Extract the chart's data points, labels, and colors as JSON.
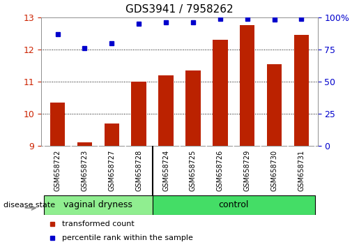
{
  "title": "GDS3941 / 7958262",
  "samples": [
    "GSM658722",
    "GSM658723",
    "GSM658727",
    "GSM658728",
    "GSM658724",
    "GSM658725",
    "GSM658726",
    "GSM658729",
    "GSM658730",
    "GSM658731"
  ],
  "red_values": [
    10.35,
    9.1,
    9.7,
    11.0,
    11.2,
    11.35,
    12.3,
    12.75,
    11.55,
    12.45
  ],
  "blue_values": [
    87,
    76,
    80,
    95,
    96,
    96,
    99,
    99,
    98,
    99
  ],
  "ylim_left": [
    9,
    13
  ],
  "ylim_right": [
    0,
    100
  ],
  "yticks_left": [
    9,
    10,
    11,
    12,
    13
  ],
  "yticks_right": [
    0,
    25,
    50,
    75,
    100
  ],
  "ytick_labels_right": [
    "0",
    "25",
    "50",
    "75",
    "100%"
  ],
  "n_vd": 4,
  "n_ctrl": 6,
  "group_vd_label": "vaginal dryness",
  "group_ctrl_label": "control",
  "group_label": "disease state",
  "group_vd_color": "#90EE90",
  "group_ctrl_color": "#44DD66",
  "bar_color": "#BB2200",
  "dot_color": "#0000CC",
  "bar_width": 0.55,
  "background_color": "#FFFFFF",
  "xtick_bg": "#CCCCCC",
  "left_tick_color": "#CC2200",
  "right_tick_color": "#0000CC",
  "title_fontsize": 11,
  "tick_fontsize": 9,
  "xtick_fontsize": 7,
  "group_fontsize": 9,
  "legend_fontsize": 8,
  "grid_color": "#000000",
  "legend_red_label": "transformed count",
  "legend_blue_label": "percentile rank within the sample",
  "sep_idx": 3.5
}
